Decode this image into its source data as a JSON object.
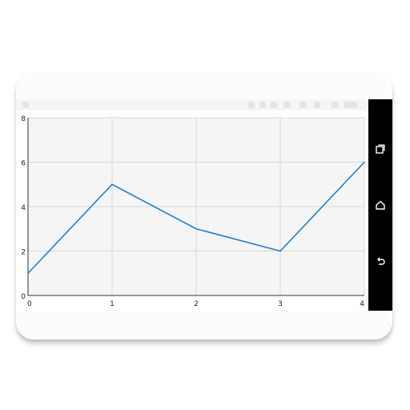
{
  "icons": {
    "recents": "recents-icon",
    "home": "home-icon",
    "back": "back-icon"
  },
  "colors": {
    "series": "#1f7fcf",
    "grid": "#d9d9d9",
    "plot_bg": "#f5f5f5",
    "navbar": "#000000"
  },
  "chart_data": {
    "type": "line",
    "x": [
      0,
      1,
      2,
      3,
      4
    ],
    "series": [
      {
        "values": [
          1,
          5,
          3,
          2,
          6
        ]
      }
    ],
    "xticks": [
      "0",
      "1",
      "2",
      "3",
      "4"
    ],
    "yticks": [
      "0",
      "2",
      "4",
      "6",
      "8"
    ],
    "xlim": [
      0,
      4
    ],
    "ylim": [
      0,
      8
    ],
    "grid": true,
    "title": "",
    "xlabel": "",
    "ylabel": ""
  }
}
